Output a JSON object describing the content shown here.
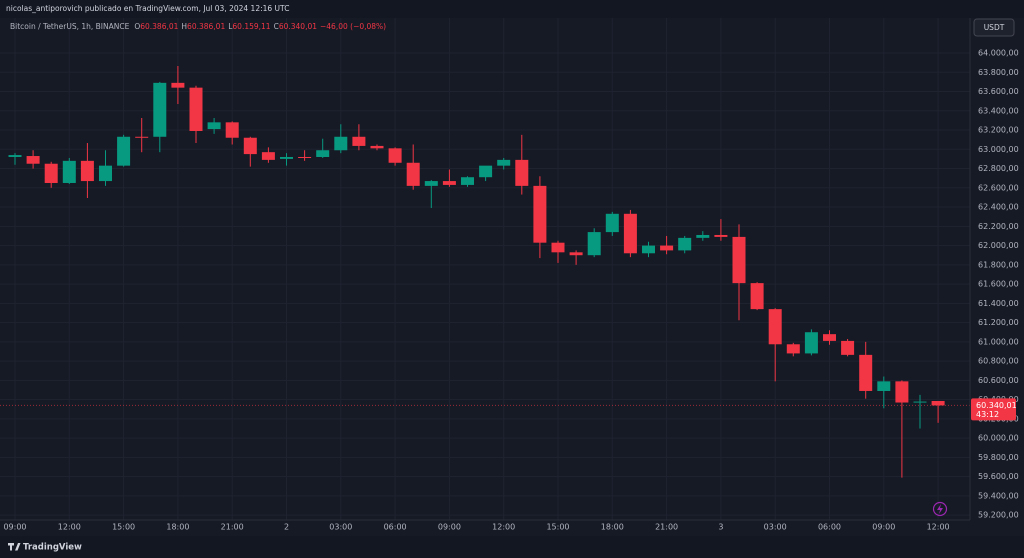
{
  "header_text": "nicolas_antiporovich publicado en TradingView.com, Jul 03, 2024 12:16 UTC",
  "brand": "TradingView",
  "chart_data": {
    "type": "candlestick",
    "title": "Bitcoin / TetherUS, 1h, BINANCE",
    "legend_values": [
      {
        "key": "O",
        "value": "60.386,01"
      },
      {
        "key": "H",
        "value": "60.386,01"
      },
      {
        "key": "L",
        "value": "60.159,11"
      },
      {
        "key": "C",
        "value": "60.340,01"
      }
    ],
    "change_label": "−46,00 (−0,08%)",
    "currency": "USDT",
    "up_color": "#089981",
    "down_color": "#f23645",
    "grid": true,
    "categories": [
      "09:00",
      null,
      null,
      "12:00",
      null,
      null,
      "15:00",
      null,
      null,
      "18:00",
      null,
      null,
      "21:00",
      null,
      null,
      "2",
      null,
      null,
      "03:00",
      null,
      null,
      "06:00",
      null,
      null,
      "09:00",
      null,
      null,
      "12:00",
      null,
      null,
      "15:00",
      null,
      null,
      "18:00",
      null,
      null,
      "21:00",
      null,
      null,
      "3",
      null,
      null,
      "03:00",
      null,
      null,
      "06:00",
      null,
      null,
      "09:00",
      null,
      null,
      "12:00"
    ],
    "open": [
      62920,
      62930,
      62850,
      62650,
      62880,
      62670,
      62830,
      63130,
      63130,
      63690,
      63640,
      63210,
      63280,
      63120,
      62970,
      62900,
      62920,
      62920,
      62990,
      63130,
      63035,
      63010,
      62860,
      62620,
      62670,
      62630,
      62710,
      62830,
      62890,
      62620,
      62030,
      61930,
      61900,
      62140,
      62330,
      61920,
      62000,
      61950,
      62080,
      62110,
      62090,
      61610,
      61340,
      60975,
      60880,
      61080,
      61010,
      60865,
      60490,
      60590,
      60370,
      60386.01
    ],
    "high": [
      62960,
      62990,
      62870,
      62910,
      63065,
      62990,
      63150,
      63325,
      63700,
      63865,
      63660,
      63325,
      63290,
      63130,
      63020,
      62960,
      62990,
      63110,
      63260,
      63260,
      63050,
      63020,
      63050,
      62680,
      62790,
      62720,
      62790,
      62910,
      63150,
      62720,
      62050,
      61950,
      62180,
      62350,
      62370,
      62040,
      62100,
      62100,
      62150,
      62275,
      62220,
      61620,
      61350,
      60990,
      61130,
      61120,
      61030,
      61000,
      60640,
      60600,
      60450,
      60386.01
    ],
    "low": [
      62840,
      62800,
      62600,
      62640,
      62494,
      62620,
      62820,
      62970,
      62970,
      63470,
      63065,
      63160,
      63050,
      62820,
      62860,
      62830,
      62880,
      62910,
      62960,
      62990,
      62990,
      62830,
      62580,
      62390,
      62610,
      62610,
      62670,
      62790,
      62530,
      61870,
      61820,
      61800,
      61880,
      62100,
      61880,
      61880,
      61910,
      61920,
      62050,
      62050,
      61225,
      61330,
      60590,
      60850,
      60860,
      60970,
      60850,
      60410,
      60310,
      59590,
      60100,
      60159.11
    ],
    "close": [
      62940,
      62850,
      62650,
      62880,
      62670,
      62830,
      63130,
      63120,
      63690,
      63640,
      63190,
      63280,
      63120,
      62950,
      62890,
      62920,
      62910,
      62990,
      63130,
      63035,
      63010,
      62860,
      62620,
      62670,
      62630,
      62710,
      62830,
      62890,
      62620,
      62030,
      61930,
      61900,
      62140,
      62330,
      61920,
      62000,
      61950,
      62080,
      62110,
      62090,
      61610,
      61340,
      60975,
      60880,
      61100,
      61010,
      60865,
      60490,
      60590,
      60370,
      60380,
      60340.01
    ],
    "ylim": [
      59150,
      64135
    ],
    "yticks": [
      {
        "value": 64000,
        "label": "64.000,00"
      },
      {
        "value": 63800,
        "label": "63.800,00"
      },
      {
        "value": 63600,
        "label": "63.600,00"
      },
      {
        "value": 63400,
        "label": "63.400,00"
      },
      {
        "value": 63200,
        "label": "63.200,00"
      },
      {
        "value": 63000,
        "label": "63.000,00"
      },
      {
        "value": 62800,
        "label": "62.800,00"
      },
      {
        "value": 62600,
        "label": "62.600,00"
      },
      {
        "value": 62400,
        "label": "62.400,00"
      },
      {
        "value": 62200,
        "label": "62.200,00"
      },
      {
        "value": 62000,
        "label": "62.000,00"
      },
      {
        "value": 61800,
        "label": "61.800,00"
      },
      {
        "value": 61600,
        "label": "61.600,00"
      },
      {
        "value": 61400,
        "label": "61.400,00"
      },
      {
        "value": 61200,
        "label": "61.200,00"
      },
      {
        "value": 61000,
        "label": "61.000,00"
      },
      {
        "value": 60800,
        "label": "60.800,00"
      },
      {
        "value": 60600,
        "label": "60.600,00"
      },
      {
        "value": 60400,
        "label": "60.400,00"
      },
      {
        "value": 60200,
        "label": "60.200,00"
      },
      {
        "value": 60000,
        "label": "60.000,00"
      },
      {
        "value": 59800,
        "label": "59.800,00"
      },
      {
        "value": 59600,
        "label": "59.600,00"
      },
      {
        "value": 59400,
        "label": "59.400,00"
      },
      {
        "value": 59200,
        "label": "59.200,00"
      }
    ],
    "last_price": {
      "value": 60340.01,
      "label": "60.340,01"
    },
    "countdown": "43:12"
  }
}
